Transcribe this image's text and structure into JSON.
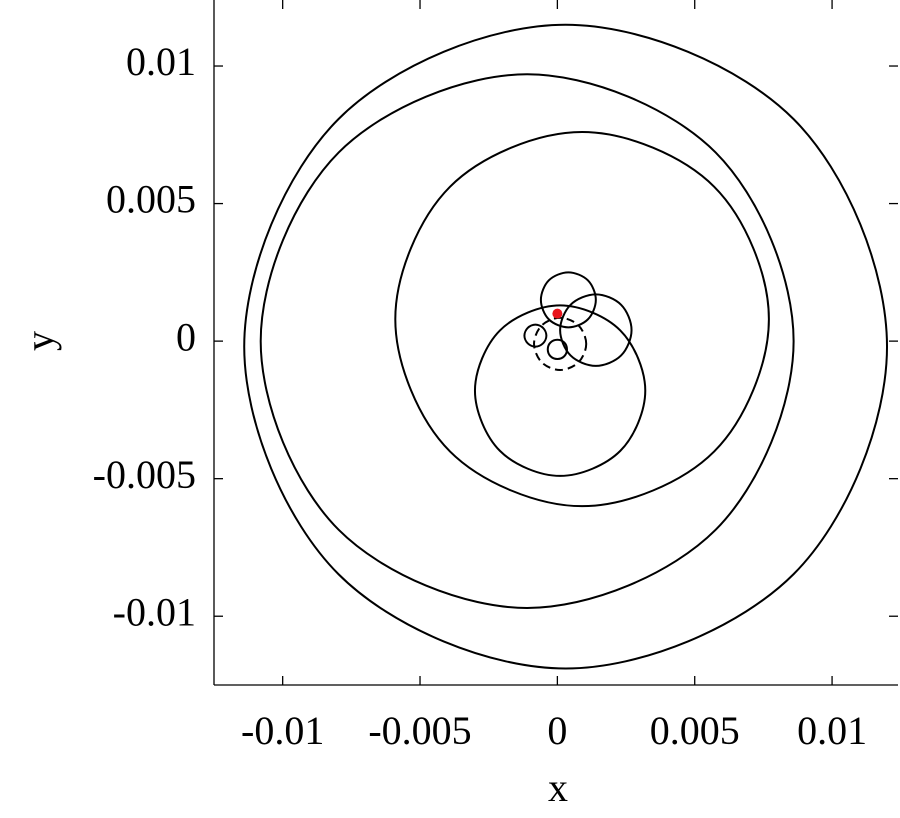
{
  "chart_data": {
    "type": "line",
    "xlabel": "x",
    "ylabel": "y",
    "xlim": [
      -0.0125,
      0.0124
    ],
    "ylim": [
      -0.0125,
      0.0124
    ],
    "xticks": [
      -0.01,
      -0.005,
      0,
      0.005,
      0.01
    ],
    "yticks": [
      -0.01,
      -0.005,
      0,
      0.005,
      0.01
    ],
    "series": [
      {
        "color": "#000000",
        "style": "solid",
        "x": [
          0.00035,
          0.00025,
          0,
          -0.00025,
          -0.00035,
          -0.00025,
          0,
          0.00025
        ],
        "y": [
          -0.0003,
          -5e-05,
          5e-05,
          -5e-05,
          -0.0003,
          -0.00055,
          -0.00065,
          -0.00055
        ]
      },
      {
        "color": "#000000",
        "style": "solid",
        "x": [
          -0.0004,
          -0.00052,
          -0.0008,
          -0.00108,
          -0.0012,
          -0.00108,
          -0.0008,
          -0.00052
        ],
        "y": [
          0.0002,
          0.00048,
          0.0006,
          0.00048,
          0.0002,
          -8e-05,
          -0.0002,
          -8e-05
        ]
      },
      {
        "color": "#000000",
        "style": "solid",
        "x": [
          0.0014,
          0.00111,
          0.0004,
          -0.00031,
          -0.0006,
          -0.00031,
          0.0004,
          0.00111
        ],
        "y": [
          0.0015,
          0.00221,
          0.0025,
          0.00221,
          0.0015,
          0.00079,
          0.0005,
          0.00079
        ]
      },
      {
        "color": "#000000",
        "style": "solid",
        "x": [
          0.0027,
          0.00232,
          0.0014,
          0.00048,
          0.0001,
          0.00048,
          0.0014,
          0.00232
        ],
        "y": [
          0.0004,
          0.00132,
          0.0017,
          0.00132,
          0.0004,
          -0.00052,
          -0.0009,
          -0.00052
        ]
      },
      {
        "color": "#000000",
        "style": "solid",
        "x": [
          0.0032,
          0.00229,
          0.0001,
          -0.00209,
          -0.003,
          -0.00209,
          0.0001,
          0.00229
        ],
        "y": [
          -0.0018,
          0.00039,
          0.0013,
          0.00039,
          -0.0018,
          -0.00399,
          -0.0049,
          -0.00399
        ]
      },
      {
        "color": "#000000",
        "style": "solid",
        "x": [
          0.0077,
          0.00571,
          0.0009,
          -0.00391,
          -0.0059,
          -0.00391,
          0.0009,
          0.00571
        ],
        "y": [
          0.0008,
          0.00561,
          0.0076,
          0.00561,
          0.0008,
          -0.00401,
          -0.006,
          -0.00401
        ]
      },
      {
        "color": "#000000",
        "style": "solid",
        "x": [
          0.0086,
          0.00576,
          -0.0011,
          -0.00796,
          -0.0108,
          -0.00796,
          -0.0011,
          0.00576
        ],
        "y": [
          0,
          0.00686,
          0.0097,
          0.00686,
          0,
          -0.00686,
          -0.0097,
          -0.00686
        ]
      },
      {
        "color": "#000000",
        "style": "solid",
        "x": [
          0.012,
          0.0086,
          0.0003,
          -0.00797,
          -0.0114,
          -0.00797,
          0.0003,
          0.0086
        ],
        "y": [
          -0.0002,
          0.00807,
          0.0115,
          0.00807,
          -0.0002,
          -0.00847,
          -0.0119,
          -0.00847
        ]
      },
      {
        "color": "#000000",
        "style": "dashed",
        "x": [
          0.00105,
          0.00077,
          0.0001,
          -0.00057,
          -0.00085,
          -0.00057,
          0.0001,
          0.00077
        ],
        "y": [
          -0.0001,
          0.00057,
          0.00085,
          0.00057,
          -0.0001,
          -0.00077,
          -0.00105,
          -0.00077
        ]
      },
      {
        "color": "#e8141c",
        "style": "marker",
        "x": [
          0
        ],
        "y": [
          0.001
        ]
      }
    ]
  }
}
